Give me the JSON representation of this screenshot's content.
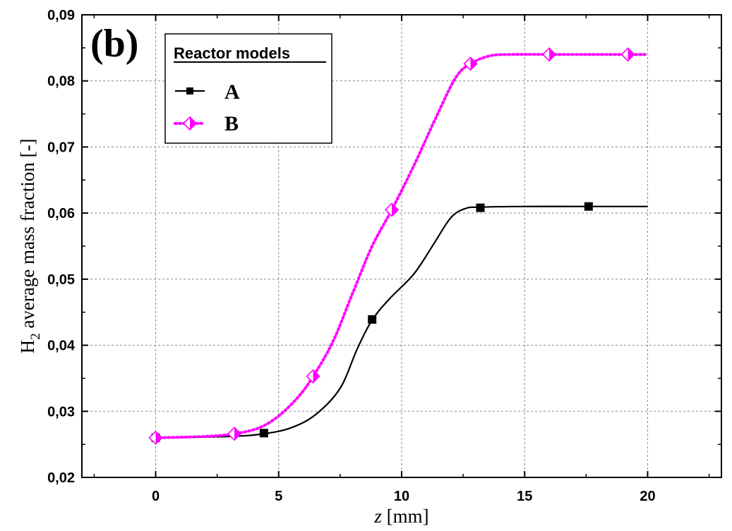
{
  "chart_data": {
    "type": "line",
    "panel_label": "(b)",
    "xlabel_italic": "z",
    "xlabel_rest": " [mm]",
    "ylabel_main": "H",
    "ylabel_sub": "2",
    "ylabel_rest": " average mass fraction [-]",
    "xlim": [
      -3,
      23
    ],
    "ylim": [
      0.02,
      0.09
    ],
    "x_ticks": [
      0,
      5,
      10,
      15,
      20
    ],
    "x_tick_labels": [
      "0",
      "5",
      "10",
      "15",
      "20"
    ],
    "y_ticks": [
      0.02,
      0.03,
      0.04,
      0.05,
      0.06,
      0.07,
      0.08,
      0.09
    ],
    "y_tick_labels": [
      "0,02",
      "0,03",
      "0,04",
      "0,05",
      "0,06",
      "0,07",
      "0,08",
      "0,09"
    ],
    "grid": true,
    "legend_placement": "top-left",
    "legend_title": "Reactor models",
    "series": [
      {
        "name": "A",
        "color": "#000000",
        "line_style": "solid",
        "marker": "square",
        "curve_x": [
          0,
          3,
          4.4,
          5.5,
          6.5,
          7.5,
          8.2,
          8.8,
          9.5,
          10.5,
          11.3,
          12,
          12.6,
          13.2,
          15,
          17.6,
          20
        ],
        "curve_y": [
          0.026,
          0.0262,
          0.0266,
          0.0275,
          0.0295,
          0.0335,
          0.0395,
          0.0438,
          0.047,
          0.0508,
          0.0553,
          0.0593,
          0.0607,
          0.0609,
          0.061,
          0.061,
          0.061
        ],
        "marker_x": [
          0,
          4.4,
          8.8,
          13.2,
          17.6
        ],
        "marker_y": [
          0.026,
          0.0267,
          0.0439,
          0.0608,
          0.061
        ]
      },
      {
        "name": "B",
        "color": "#ff00ff",
        "line_style": "dotted",
        "marker": "half-diamond",
        "curve_x": [
          0,
          2,
          3.2,
          4.2,
          5,
          5.8,
          6.4,
          7.2,
          8,
          8.8,
          9.6,
          10.5,
          11.4,
          12.2,
          12.8,
          13.6,
          14.5,
          16,
          19.2,
          20
        ],
        "curve_y": [
          0.026,
          0.0262,
          0.0266,
          0.0275,
          0.0293,
          0.0322,
          0.0353,
          0.0405,
          0.0478,
          0.055,
          0.0605,
          0.0672,
          0.0745,
          0.0805,
          0.0826,
          0.0838,
          0.084,
          0.084,
          0.084,
          0.084
        ],
        "marker_x": [
          0,
          3.2,
          6.4,
          9.6,
          12.8,
          16,
          19.2
        ],
        "marker_y": [
          0.026,
          0.0266,
          0.0353,
          0.0605,
          0.0826,
          0.084,
          0.084
        ]
      }
    ]
  }
}
